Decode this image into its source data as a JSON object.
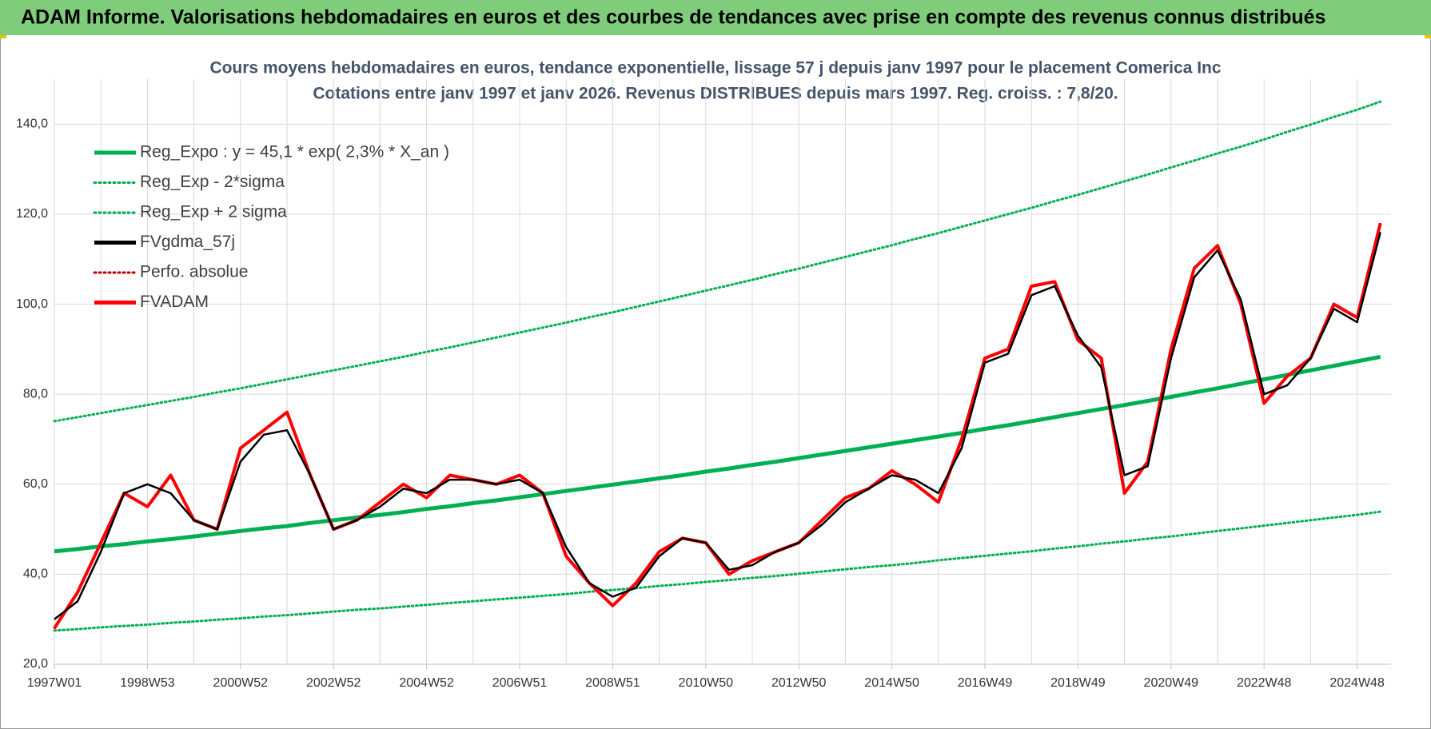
{
  "header": {
    "title": "ADAM Informe. Valorisations hebdomadaires en euros et des courbes de tendances avec prise en compte des revenus connus distribués"
  },
  "chart_data": {
    "type": "line",
    "title": "Cours moyens hebdomadaires en euros, tendance exponentielle, lissage 57 j depuis janv 1997 pour le placement Comerica Inc",
    "subtitle": "Cotations entre janv 1997 et janv 2026. Revenus DISTRIBUES depuis mars 1997.  Reg. croiss. : 7,8/20.",
    "categories": [
      "1997W01",
      null,
      null,
      null,
      "1998W53",
      null,
      null,
      null,
      "2000W52",
      null,
      null,
      null,
      "2002W52",
      null,
      null,
      null,
      "2004W52",
      null,
      null,
      null,
      "2006W51",
      null,
      null,
      null,
      "2008W51",
      null,
      null,
      null,
      "2010W50",
      null,
      null,
      null,
      "2012W50",
      null,
      null,
      null,
      "2014W50",
      null,
      null,
      null,
      "2016W49",
      null,
      null,
      null,
      "2018W49",
      null,
      null,
      null,
      "2020W49",
      null,
      null,
      null,
      "2022W48",
      null,
      null,
      null,
      "2024W48",
      null
    ],
    "ylim": [
      20,
      150
    ],
    "yticks": [
      {
        "value": 20,
        "label": "20,0"
      },
      {
        "value": 40,
        "label": "40,0"
      },
      {
        "value": 60,
        "label": "60,0"
      },
      {
        "value": 80,
        "label": "80,0"
      },
      {
        "value": 100,
        "label": "100,0"
      },
      {
        "value": 120,
        "label": "120,0"
      },
      {
        "value": 140,
        "label": "140,0"
      }
    ],
    "grid": true,
    "legend": "top-left",
    "series": [
      {
        "name": "Reg_Expo : y = 45,1 * exp( 2,3% *  X_an )",
        "color": "#00b050",
        "style": "solid",
        "width": 5,
        "values": [
          45.1,
          45.6,
          46.2,
          46.7,
          47.3,
          47.8,
          48.4,
          49.0,
          49.6,
          50.2,
          50.7,
          51.4,
          52.0,
          52.6,
          53.2,
          53.8,
          54.5,
          55.1,
          55.8,
          56.4,
          57.1,
          57.8,
          58.5,
          59.2,
          59.9,
          60.6,
          61.3,
          62.0,
          62.8,
          63.5,
          64.3,
          65.0,
          65.8,
          66.6,
          67.4,
          68.2,
          69.0,
          69.8,
          70.6,
          71.4,
          72.3,
          73.1,
          74.0,
          74.9,
          75.8,
          76.7,
          77.6,
          78.5,
          79.4,
          80.4,
          81.3,
          82.3,
          83.3,
          84.3,
          85.3,
          86.3,
          87.3,
          88.3
        ]
      },
      {
        "name": "Reg_Exp - 2*sigma",
        "color": "#00b050",
        "style": "dotted",
        "width": 3,
        "values": [
          27.5,
          27.8,
          28.2,
          28.5,
          28.8,
          29.2,
          29.5,
          29.9,
          30.2,
          30.6,
          30.9,
          31.3,
          31.7,
          32.1,
          32.4,
          32.8,
          33.2,
          33.6,
          34.0,
          34.4,
          34.8,
          35.2,
          35.6,
          36.1,
          36.5,
          36.9,
          37.4,
          37.8,
          38.3,
          38.7,
          39.2,
          39.6,
          40.1,
          40.6,
          41.1,
          41.6,
          42.0,
          42.5,
          43.1,
          43.6,
          44.1,
          44.6,
          45.1,
          45.7,
          46.2,
          46.8,
          47.3,
          47.9,
          48.4,
          49.0,
          49.6,
          50.2,
          50.8,
          51.4,
          52.0,
          52.6,
          53.2,
          53.9
        ]
      },
      {
        "name": "Reg_Exp + 2 sigma",
        "color": "#00b050",
        "style": "dotted",
        "width": 3,
        "values": [
          74.0,
          74.9,
          75.8,
          76.7,
          77.6,
          78.5,
          79.4,
          80.4,
          81.3,
          82.3,
          83.3,
          84.3,
          85.3,
          86.3,
          87.3,
          88.3,
          89.4,
          90.4,
          91.5,
          92.6,
          93.7,
          94.8,
          95.9,
          97.1,
          98.2,
          99.4,
          100.6,
          101.8,
          103.0,
          104.2,
          105.4,
          106.7,
          107.9,
          109.2,
          110.5,
          111.8,
          113.1,
          114.5,
          115.8,
          117.2,
          118.6,
          120.0,
          121.4,
          122.9,
          124.3,
          125.8,
          127.3,
          128.8,
          130.4,
          131.9,
          133.5,
          135.0,
          136.6,
          138.3,
          139.9,
          141.6,
          143.2,
          145.0
        ]
      },
      {
        "name": "FVgdma_57j",
        "color": "#000000",
        "style": "solid",
        "width": 2.5,
        "values": [
          30,
          34,
          45,
          58,
          60,
          58,
          52,
          50,
          65,
          71,
          72,
          62,
          50,
          52,
          55,
          59,
          58,
          61,
          61,
          60,
          61,
          58,
          46,
          38,
          35,
          37,
          44,
          48,
          47,
          41,
          42,
          45,
          47,
          51,
          56,
          59,
          62,
          61,
          58,
          68,
          87,
          89,
          102,
          104,
          93,
          86,
          62,
          64,
          88,
          106,
          112,
          101,
          80,
          82,
          88,
          99,
          96,
          116
        ]
      },
      {
        "name": "Perfo. absolue",
        "color": "#c00000",
        "style": "dotted",
        "width": 2,
        "values": [
          28,
          36,
          47,
          58,
          55,
          62,
          52,
          50,
          68,
          72,
          76,
          62,
          50,
          52,
          56,
          60,
          57,
          62,
          61,
          60,
          62,
          58,
          44,
          38,
          33,
          38,
          45,
          48,
          47,
          40,
          43,
          45,
          47,
          52,
          57,
          59,
          63,
          60,
          56,
          70,
          88,
          90,
          104,
          105,
          92,
          88,
          58,
          65,
          90,
          108,
          113,
          100,
          78,
          84,
          88,
          100,
          97,
          118
        ]
      },
      {
        "name": "FVADAM",
        "color": "#ff0000",
        "style": "solid",
        "width": 4,
        "values": [
          28,
          36,
          47,
          58,
          55,
          62,
          52,
          50,
          68,
          72,
          76,
          62,
          50,
          52,
          56,
          60,
          57,
          62,
          61,
          60,
          62,
          58,
          44,
          38,
          33,
          38,
          45,
          48,
          47,
          40,
          43,
          45,
          47,
          52,
          57,
          59,
          63,
          60,
          56,
          70,
          88,
          90,
          104,
          105,
          92,
          88,
          58,
          65,
          90,
          108,
          113,
          100,
          78,
          84,
          88,
          100,
          97,
          118
        ]
      }
    ]
  }
}
